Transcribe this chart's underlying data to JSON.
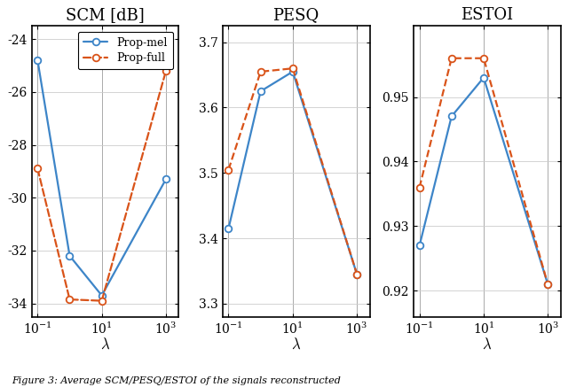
{
  "x": [
    0.1,
    1,
    10,
    1000
  ],
  "scm_mel": [
    -24.8,
    -32.2,
    -33.7,
    -29.3
  ],
  "scm_full": [
    -28.9,
    -33.85,
    -33.9,
    -25.2
  ],
  "pesq_mel": [
    3.415,
    3.625,
    3.655,
    3.345
  ],
  "pesq_full": [
    3.505,
    3.655,
    3.66,
    3.345
  ],
  "estoi_mel": [
    0.927,
    0.947,
    0.953,
    0.921
  ],
  "estoi_full": [
    0.936,
    0.956,
    0.956,
    0.921
  ],
  "color_mel": "#3d85c8",
  "color_full": "#d95319",
  "title_scm": "SCM [dB]",
  "title_pesq": "PESQ",
  "title_estoi": "ESTOI",
  "xlabel": "$\\lambda$",
  "scm_ylim": [
    -34.5,
    -23.5
  ],
  "scm_yticks": [
    -34,
    -32,
    -30,
    -28,
    -26,
    -24
  ],
  "pesq_ylim": [
    3.28,
    3.725
  ],
  "pesq_yticks": [
    3.3,
    3.4,
    3.5,
    3.6,
    3.7
  ],
  "estoi_ylim": [
    0.916,
    0.961
  ],
  "estoi_yticks": [
    0.92,
    0.93,
    0.94,
    0.95
  ],
  "caption": "Figure 3: Average SCM/PESQ/ESTOI of the signals reconstructed"
}
